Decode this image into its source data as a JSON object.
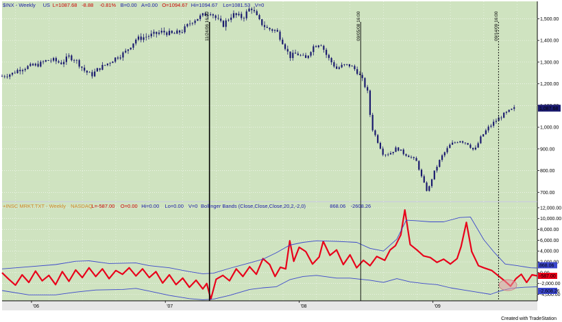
{
  "header_top": [
    {
      "text": "$INX - Weekly",
      "color": "#1a1aa6"
    },
    {
      "text": "US",
      "color": "#1a1aa6"
    },
    {
      "text": "L=1087.68",
      "color": "#cc0000"
    },
    {
      "text": "-8.88",
      "color": "#cc0000"
    },
    {
      "text": "-0.81%",
      "color": "#cc0000"
    },
    {
      "text": "B=0.00",
      "color": "#1a1aa6"
    },
    {
      "text": "A=0.00",
      "color": "#1a1aa6"
    },
    {
      "text": "O=1094.67",
      "color": "#cc0000"
    },
    {
      "text": "Hi=1094.67",
      "color": "#1a1aa6"
    },
    {
      "text": "Lo=1081.53",
      "color": "#1a1aa6"
    },
    {
      "text": "V=0",
      "color": "#1a1aa6"
    }
  ],
  "header_bottom": [
    {
      "text": "+INSC MRKT.TXT - Weekly",
      "color": "#d08a2a"
    },
    {
      "text": "NASDAQ",
      "color": "#d08a2a"
    },
    {
      "text": "L=-587.00",
      "color": "#cc0000"
    },
    {
      "text": "O=0.00",
      "color": "#cc0000"
    },
    {
      "text": "Hi=0.00",
      "color": "#1a1aa6"
    },
    {
      "text": "Lo=0.00",
      "color": "#1a1aa6"
    },
    {
      "text": "V=0",
      "color": "#1a1aa6"
    },
    {
      "text": "Bollinger Bands (Close,Close,Close,20,2,-2,0)",
      "color": "#1a1aa6"
    },
    {
      "text": "868.06",
      "color": "#1a1aa6"
    },
    {
      "text": "-2608.26",
      "color": "#1a1aa6"
    }
  ],
  "vlines": [
    {
      "label": "11/24/06 16:00",
      "t": 1.55
    },
    {
      "label": "09/05/08 16:00",
      "t": 2.68
    },
    {
      "label": "09/14/09 16:00",
      "t": 3.71
    }
  ],
  "x_tick_labels": [
    {
      "label": "'06",
      "t": 0.22
    },
    {
      "label": "'07",
      "t": 1.22
    },
    {
      "label": "'08",
      "t": 2.22
    },
    {
      "label": "'09",
      "t": 3.22
    }
  ],
  "footer": "Created with TradeStation",
  "colors": {
    "plot_bg": "#cfe3c0",
    "candle": "#1a1a6e",
    "indicator": "#e8001a",
    "band": "#3a46cc",
    "last_price_box": "#1a1a6e",
    "last_indicator_box": "#e8001a",
    "ellipse": "#e0a0a8"
  },
  "chart_data": [
    {
      "type": "candlestick",
      "title": "$INX - Weekly",
      "x_unit": "years since start of 2006 (weekly bars)",
      "ylim": [
        660,
        1580
      ],
      "y_ticks": [
        700,
        800,
        900,
        1000,
        1100,
        1200,
        1300,
        1400,
        1500
      ],
      "y_tick_labels": [
        "700.00",
        "800.00",
        "900.00",
        "1,000.00",
        "1,100.00",
        "1,200.00",
        "1,300.00",
        "1,400.00",
        "1,500.00"
      ],
      "last_value_label": "1,087.68",
      "last_value": 1087.68,
      "close_path": [
        [
          0.0,
          1235
        ],
        [
          0.08,
          1248
        ],
        [
          0.12,
          1265
        ],
        [
          0.2,
          1280
        ],
        [
          0.28,
          1290
        ],
        [
          0.32,
          1305
        ],
        [
          0.38,
          1310
        ],
        [
          0.44,
          1295
        ],
        [
          0.5,
          1325
        ],
        [
          0.55,
          1310
        ],
        [
          0.62,
          1258
        ],
        [
          0.67,
          1240
        ],
        [
          0.72,
          1270
        ],
        [
          0.78,
          1290
        ],
        [
          0.85,
          1320
        ],
        [
          0.92,
          1345
        ],
        [
          1.0,
          1405
        ],
        [
          1.12,
          1425
        ],
        [
          1.2,
          1440
        ],
        [
          1.28,
          1428
        ],
        [
          1.35,
          1445
        ],
        [
          1.42,
          1490
        ],
        [
          1.5,
          1515
        ],
        [
          1.56,
          1533
        ],
        [
          1.6,
          1500
        ],
        [
          1.65,
          1470
        ],
        [
          1.72,
          1520
        ],
        [
          1.8,
          1505
        ],
        [
          1.86,
          1555
        ],
        [
          1.92,
          1490
        ],
        [
          1.98,
          1455
        ],
        [
          2.05,
          1445
        ],
        [
          2.1,
          1390
        ],
        [
          2.15,
          1325
        ],
        [
          2.2,
          1340
        ],
        [
          2.27,
          1315
        ],
        [
          2.32,
          1370
        ],
        [
          2.38,
          1390
        ],
        [
          2.43,
          1325
        ],
        [
          2.5,
          1270
        ],
        [
          2.55,
          1285
        ],
        [
          2.6,
          1285
        ],
        [
          2.65,
          1260
        ],
        [
          2.69,
          1220
        ],
        [
          2.73,
          1165
        ],
        [
          2.76,
          1005
        ],
        [
          2.8,
          945
        ],
        [
          2.85,
          875
        ],
        [
          2.9,
          880
        ],
        [
          2.95,
          905
        ],
        [
          3.0,
          880
        ],
        [
          3.05,
          865
        ],
        [
          3.1,
          840
        ],
        [
          3.14,
          760
        ],
        [
          3.18,
          700
        ],
        [
          3.22,
          780
        ],
        [
          3.28,
          860
        ],
        [
          3.35,
          920
        ],
        [
          3.42,
          940
        ],
        [
          3.48,
          925
        ],
        [
          3.53,
          890
        ],
        [
          3.58,
          955
        ],
        [
          3.63,
          995
        ],
        [
          3.68,
          1025
        ],
        [
          3.73,
          1050
        ],
        [
          3.78,
          1070
        ],
        [
          3.84,
          1090
        ]
      ]
    },
    {
      "type": "line",
      "title": "+INSC MRKT.TXT - Weekly",
      "x_unit": "years since start of 2006 (weekly)",
      "ylim": [
        -5200,
        13000
      ],
      "y_ticks": [
        -4000,
        -2000,
        0,
        2000,
        4000,
        6000,
        8000,
        10000,
        12000
      ],
      "y_tick_labels": [
        "-4,000.00",
        "-2,000.00",
        "0.00",
        "2,000.00",
        "4,000.00",
        "6,000.00",
        "8,000.00",
        "10,000.00",
        "12,000.00"
      ],
      "last_value_labels": [
        "868.06",
        "-587.00",
        "-2,608.26"
      ],
      "series": [
        {
          "name": "+INSC MRKT.TXT",
          "points": [
            [
              0.0,
              0
            ],
            [
              0.05,
              -1200
            ],
            [
              0.1,
              -2300
            ],
            [
              0.15,
              -400
            ],
            [
              0.2,
              -1800
            ],
            [
              0.25,
              300
            ],
            [
              0.3,
              -1500
            ],
            [
              0.35,
              -500
            ],
            [
              0.4,
              -2200
            ],
            [
              0.45,
              200
            ],
            [
              0.5,
              -1600
            ],
            [
              0.55,
              500
            ],
            [
              0.6,
              -900
            ],
            [
              0.65,
              900
            ],
            [
              0.7,
              -700
            ],
            [
              0.75,
              700
            ],
            [
              0.8,
              -1100
            ],
            [
              0.85,
              400
            ],
            [
              0.9,
              -300
            ],
            [
              0.95,
              900
            ],
            [
              1.0,
              -600
            ],
            [
              1.05,
              700
            ],
            [
              1.1,
              -900
            ],
            [
              1.15,
              200
            ],
            [
              1.2,
              -1900
            ],
            [
              1.25,
              -400
            ],
            [
              1.3,
              -2200
            ],
            [
              1.35,
              -1000
            ],
            [
              1.4,
              -2700
            ],
            [
              1.45,
              -1400
            ],
            [
              1.5,
              -3000
            ],
            [
              1.53,
              -2000
            ],
            [
              1.56,
              -4900
            ],
            [
              1.6,
              -1200
            ],
            [
              1.65,
              -500
            ],
            [
              1.7,
              -1500
            ],
            [
              1.75,
              700
            ],
            [
              1.8,
              -700
            ],
            [
              1.85,
              1100
            ],
            [
              1.9,
              -300
            ],
            [
              1.95,
              2600
            ],
            [
              2.0,
              1500
            ],
            [
              2.04,
              -700
            ],
            [
              2.08,
              1000
            ],
            [
              2.12,
              700
            ],
            [
              2.15,
              5900
            ],
            [
              2.18,
              2100
            ],
            [
              2.22,
              4700
            ],
            [
              2.27,
              3900
            ],
            [
              2.32,
              1600
            ],
            [
              2.37,
              2900
            ],
            [
              2.4,
              5800
            ],
            [
              2.45,
              3200
            ],
            [
              2.5,
              4200
            ],
            [
              2.55,
              1500
            ],
            [
              2.6,
              3300
            ],
            [
              2.65,
              900
            ],
            [
              2.7,
              2300
            ],
            [
              2.75,
              1300
            ],
            [
              2.8,
              3000
            ],
            [
              2.86,
              2300
            ],
            [
              2.9,
              4200
            ],
            [
              2.94,
              5000
            ],
            [
              2.98,
              7000
            ],
            [
              3.01,
              11600
            ],
            [
              3.05,
              5200
            ],
            [
              3.1,
              4200
            ],
            [
              3.15,
              3100
            ],
            [
              3.2,
              2800
            ],
            [
              3.25,
              1900
            ],
            [
              3.3,
              2500
            ],
            [
              3.35,
              1600
            ],
            [
              3.4,
              2600
            ],
            [
              3.43,
              4800
            ],
            [
              3.47,
              9300
            ],
            [
              3.51,
              3900
            ],
            [
              3.56,
              1300
            ],
            [
              3.6,
              900
            ],
            [
              3.66,
              400
            ],
            [
              3.71,
              -600
            ],
            [
              3.76,
              -1600
            ],
            [
              3.8,
              -2500
            ],
            [
              3.84,
              -1100
            ],
            [
              3.88,
              -300
            ],
            [
              3.92,
              -1800
            ],
            [
              3.96,
              -400
            ],
            [
              4.0,
              -587
            ]
          ]
        },
        {
          "name": "Upper Bollinger Band",
          "points": [
            [
              0.0,
              700
            ],
            [
              0.2,
              1100
            ],
            [
              0.4,
              1500
            ],
            [
              0.55,
              2100
            ],
            [
              0.65,
              2200
            ],
            [
              0.8,
              1700
            ],
            [
              1.0,
              1800
            ],
            [
              1.1,
              1300
            ],
            [
              1.25,
              900
            ],
            [
              1.4,
              200
            ],
            [
              1.5,
              -200
            ],
            [
              1.58,
              -100
            ],
            [
              1.7,
              800
            ],
            [
              1.85,
              1800
            ],
            [
              1.95,
              2500
            ],
            [
              2.05,
              3700
            ],
            [
              2.15,
              5100
            ],
            [
              2.25,
              5600
            ],
            [
              2.35,
              5900
            ],
            [
              2.5,
              5800
            ],
            [
              2.65,
              5600
            ],
            [
              2.75,
              4500
            ],
            [
              2.85,
              4000
            ],
            [
              2.95,
              6200
            ],
            [
              3.02,
              9700
            ],
            [
              3.1,
              9600
            ],
            [
              3.2,
              9400
            ],
            [
              3.3,
              9400
            ],
            [
              3.42,
              10200
            ],
            [
              3.5,
              10300
            ],
            [
              3.6,
              6100
            ],
            [
              3.68,
              3700
            ],
            [
              3.76,
              1600
            ],
            [
              3.85,
              1300
            ],
            [
              3.95,
              900
            ],
            [
              4.0,
              868
            ]
          ]
        },
        {
          "name": "Lower Bollinger Band",
          "points": [
            [
              0.0,
              -3300
            ],
            [
              0.2,
              -4100
            ],
            [
              0.4,
              -4100
            ],
            [
              0.55,
              -3600
            ],
            [
              0.7,
              -3200
            ],
            [
              0.9,
              -3100
            ],
            [
              1.0,
              -2900
            ],
            [
              1.1,
              -3400
            ],
            [
              1.25,
              -4200
            ],
            [
              1.4,
              -4800
            ],
            [
              1.5,
              -5000
            ],
            [
              1.58,
              -4900
            ],
            [
              1.7,
              -4200
            ],
            [
              1.85,
              -3100
            ],
            [
              1.95,
              -2800
            ],
            [
              2.05,
              -2600
            ],
            [
              2.15,
              -1300
            ],
            [
              2.25,
              -700
            ],
            [
              2.35,
              -500
            ],
            [
              2.5,
              -1000
            ],
            [
              2.6,
              -1000
            ],
            [
              2.75,
              -1400
            ],
            [
              2.85,
              -1800
            ],
            [
              2.95,
              -1100
            ],
            [
              3.05,
              -1700
            ],
            [
              3.15,
              -2000
            ],
            [
              3.25,
              -2200
            ],
            [
              3.35,
              -2800
            ],
            [
              3.45,
              -3200
            ],
            [
              3.55,
              -3600
            ],
            [
              3.65,
              -4000
            ],
            [
              3.72,
              -3400
            ],
            [
              3.8,
              -2900
            ],
            [
              3.9,
              -2700
            ],
            [
              4.0,
              -2608
            ]
          ]
        }
      ]
    }
  ]
}
